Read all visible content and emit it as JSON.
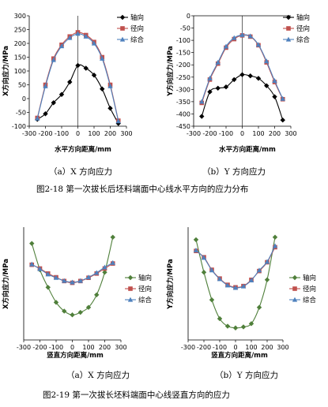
{
  "figures": [
    {
      "caption": "图2-18  第一次拔长后坯料端面中心线水平方向的应力分布",
      "panels": [
        {
          "label": "（a）X 方向应力"
        },
        {
          "label": "（b）Y 方向应力"
        }
      ]
    },
    {
      "caption": "图2-19  第一次拔长坯料端面中心线竖直方向的应力",
      "panels": [
        {
          "label": "（a）X 方向应力"
        },
        {
          "label": "（b）Y 方向应力"
        }
      ]
    }
  ],
  "chart_data": [
    {
      "type": "line",
      "xlabel": "水平方向距离/mm",
      "ylabel": "X方向应力/MPa",
      "xlim": [
        -300,
        300
      ],
      "ylim": [
        -100,
        300
      ],
      "xticks": [
        -300,
        -200,
        -100,
        0,
        100,
        200,
        300
      ],
      "yticks": [
        -100,
        -50,
        0,
        50,
        100,
        150,
        200,
        250,
        300
      ],
      "legend_position": "top-right",
      "series": [
        {
          "name": "轴向",
          "color": "#000000",
          "marker": "diamond",
          "x": [
            -250,
            -200,
            -150,
            -100,
            -50,
            0,
            50,
            100,
            150,
            200,
            250
          ],
          "y": [
            -75,
            -55,
            -15,
            15,
            60,
            120,
            110,
            85,
            35,
            -35,
            -90
          ]
        },
        {
          "name": "径向",
          "color": "#c0504d",
          "marker": "square",
          "x": [
            -250,
            -200,
            -150,
            -100,
            -50,
            0,
            50,
            100,
            150,
            200,
            250
          ],
          "y": [
            -70,
            50,
            145,
            195,
            225,
            240,
            230,
            205,
            150,
            50,
            -80
          ]
        },
        {
          "name": "综合",
          "color": "#4f81bd",
          "marker": "triangle",
          "x": [
            -250,
            -200,
            -150,
            -100,
            -50,
            0,
            50,
            100,
            150,
            200,
            250
          ],
          "y": [
            -72,
            45,
            140,
            190,
            220,
            235,
            225,
            200,
            145,
            45,
            -82
          ]
        }
      ]
    },
    {
      "type": "line",
      "xlabel": "水平方向距离/mm",
      "ylabel": "Y方向应力/MPa",
      "xlim": [
        -300,
        300
      ],
      "ylim": [
        -450,
        0
      ],
      "xticks": [
        -300,
        -200,
        -100,
        0,
        100,
        200,
        300
      ],
      "yticks": [
        -450,
        -400,
        -350,
        -300,
        -250,
        -200,
        -150,
        -100,
        -50,
        0
      ],
      "legend_position": "top-right",
      "series": [
        {
          "name": "轴向",
          "color": "#000000",
          "marker": "diamond",
          "x": [
            -250,
            -200,
            -150,
            -100,
            -50,
            0,
            50,
            100,
            150,
            200,
            250
          ],
          "y": [
            -410,
            -310,
            -295,
            -290,
            -260,
            -240,
            -245,
            -255,
            -285,
            -330,
            -425
          ]
        },
        {
          "name": "径向",
          "color": "#c0504d",
          "marker": "square",
          "x": [
            -250,
            -200,
            -150,
            -100,
            -50,
            0,
            50,
            100,
            150,
            200,
            250
          ],
          "y": [
            -355,
            -260,
            -195,
            -130,
            -95,
            -80,
            -85,
            -120,
            -190,
            -270,
            -340
          ]
        },
        {
          "name": "综合",
          "color": "#4f81bd",
          "marker": "triangle",
          "x": [
            -250,
            -200,
            -150,
            -100,
            -50,
            0,
            50,
            100,
            150,
            200,
            250
          ],
          "y": [
            -350,
            -255,
            -190,
            -125,
            -90,
            -78,
            -83,
            -118,
            -185,
            -265,
            -338
          ]
        }
      ]
    },
    {
      "type": "line",
      "xlabel": "竖直方向距离/mm",
      "ylabel": "X方向应力/MPa",
      "xlim": [
        -300,
        300
      ],
      "ylim": [
        0,
        450
      ],
      "xticks": [
        -300,
        -200,
        -100,
        0,
        100,
        200,
        300
      ],
      "yticks": [],
      "legend_position": "right",
      "series": [
        {
          "name": "轴向",
          "color": "#4f7f3a",
          "marker": "diamond",
          "x": [
            -250,
            -200,
            -150,
            -100,
            -50,
            0,
            50,
            100,
            150,
            200,
            250
          ],
          "y": [
            385,
            280,
            210,
            150,
            115,
            100,
            110,
            130,
            180,
            270,
            410
          ]
        },
        {
          "name": "径向",
          "color": "#c0504d",
          "marker": "square",
          "x": [
            -250,
            -200,
            -150,
            -100,
            -50,
            0,
            50,
            100,
            150,
            200,
            250
          ],
          "y": [
            300,
            285,
            265,
            250,
            235,
            228,
            235,
            248,
            265,
            285,
            305
          ]
        },
        {
          "name": "综合",
          "color": "#4f81bd",
          "marker": "triangle",
          "x": [
            -250,
            -200,
            -150,
            -100,
            -50,
            0,
            50,
            100,
            150,
            200,
            250
          ],
          "y": [
            302,
            283,
            262,
            248,
            236,
            230,
            236,
            250,
            268,
            290,
            308
          ]
        }
      ]
    },
    {
      "type": "line",
      "xlabel": "竖直方向距离/mm",
      "ylabel": "Y方向应力/MPa",
      "xlim": [
        -300,
        300
      ],
      "ylim": [
        -300,
        150
      ],
      "xticks": [
        -300,
        -200,
        -100,
        0,
        100,
        200,
        300
      ],
      "yticks": [],
      "legend_position": "right",
      "series": [
        {
          "name": "轴向",
          "color": "#4f7f3a",
          "marker": "diamond",
          "x": [
            -250,
            -200,
            -150,
            -100,
            -50,
            0,
            50,
            100,
            150,
            200,
            250
          ],
          "y": [
            100,
            -30,
            -140,
            -215,
            -245,
            -252,
            -248,
            -235,
            -170,
            -60,
            110
          ]
        },
        {
          "name": "径向",
          "color": "#c0504d",
          "marker": "square",
          "x": [
            -250,
            -200,
            -150,
            -100,
            -50,
            0,
            50,
            100,
            150,
            200,
            250
          ],
          "y": [
            55,
            30,
            -20,
            -55,
            -80,
            -90,
            -85,
            -60,
            -25,
            10,
            70
          ]
        },
        {
          "name": "综合",
          "color": "#4f81bd",
          "marker": "triangle",
          "x": [
            -250,
            -200,
            -150,
            -100,
            -50,
            0,
            50,
            100,
            150,
            200,
            250
          ],
          "y": [
            58,
            28,
            -22,
            -57,
            -82,
            -92,
            -86,
            -62,
            -22,
            12,
            75
          ]
        }
      ]
    }
  ]
}
